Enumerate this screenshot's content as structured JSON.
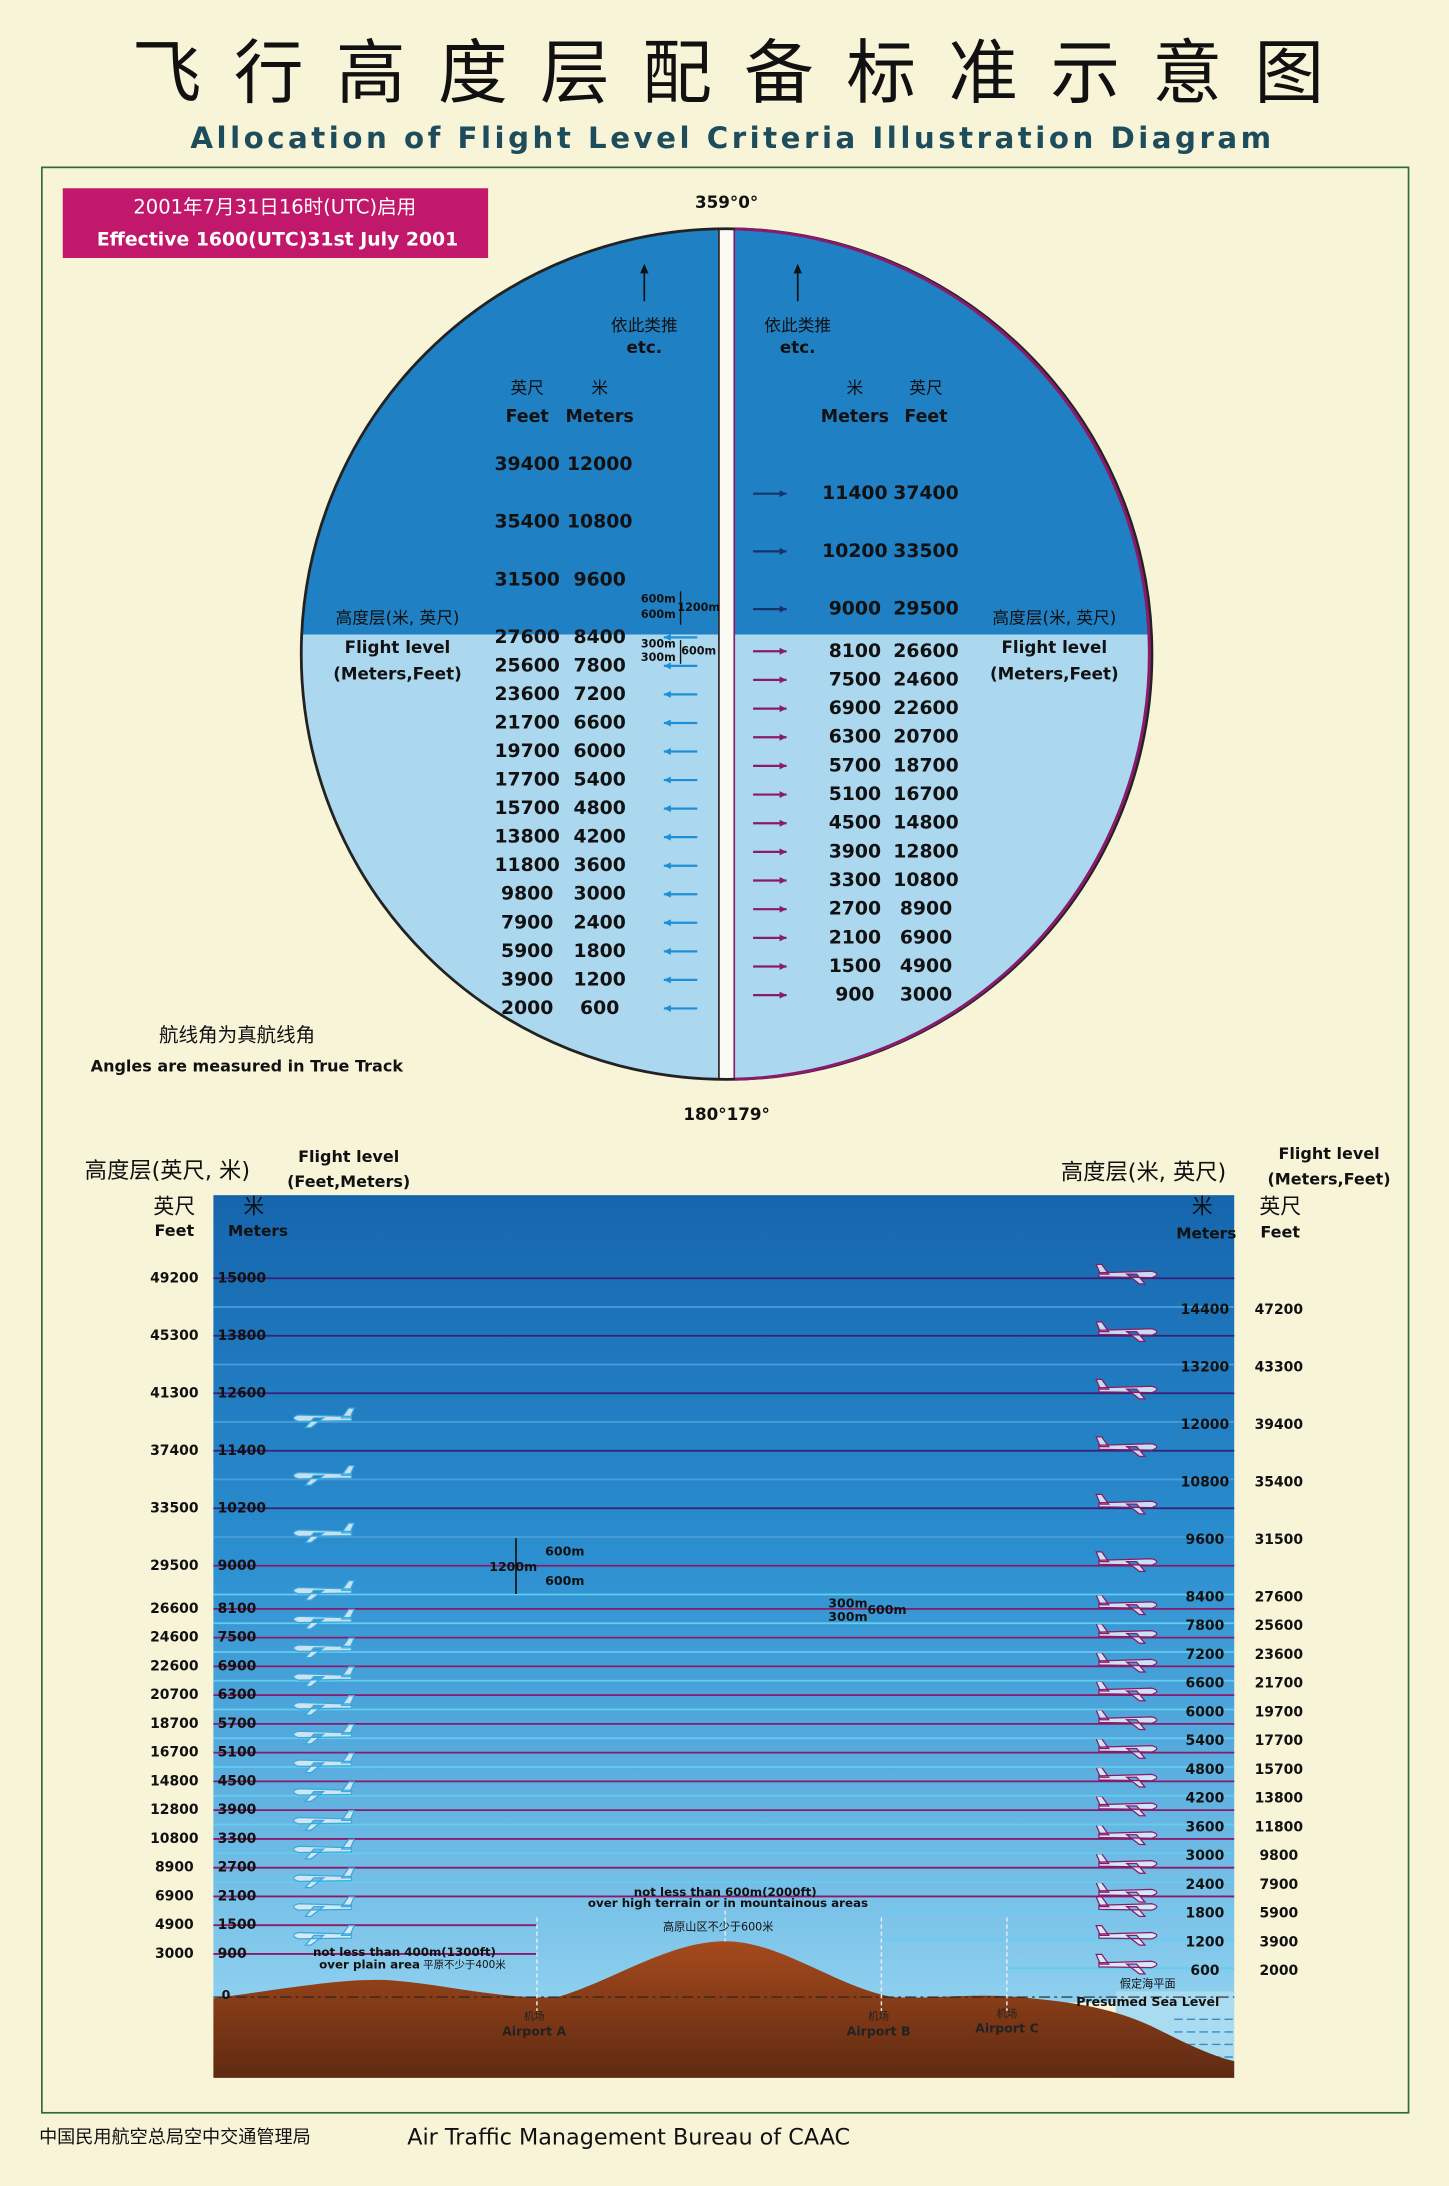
{
  "header": {
    "title_cn": "飞行高度层配备标准示意图",
    "title_en": "Allocation of Flight Level Criteria Illustration Diagram"
  },
  "effective": {
    "cn": "2001年7月31日16时(UTC)启用",
    "en": "Effective 1600(UTC)31st July 2001"
  },
  "circle": {
    "top_bearing": "359°0°",
    "bottom_bearing": "180°179°",
    "west": {
      "etc_cn": "依此类推",
      "etc_en": "etc.",
      "col1_cn": "英尺",
      "col2_cn": "米",
      "col1": "Feet",
      "col2": "Meters",
      "label_cn": "高度层(米, 英尺)",
      "label_en": "Flight level",
      "label_units": "(Meters,Feet)",
      "levels": [
        [
          39400,
          12000
        ],
        [
          35400,
          10800
        ],
        [
          31500,
          9600
        ],
        [
          27600,
          8400
        ],
        [
          25600,
          7800
        ],
        [
          23600,
          7200
        ],
        [
          21700,
          6600
        ],
        [
          19700,
          6000
        ],
        [
          17700,
          5400
        ],
        [
          15700,
          4800
        ],
        [
          13800,
          4200
        ],
        [
          11800,
          3600
        ],
        [
          9800,
          3000
        ],
        [
          7900,
          2400
        ],
        [
          5900,
          1800
        ],
        [
          3900,
          1200
        ],
        [
          2000,
          600
        ]
      ]
    },
    "east": {
      "etc_cn": "依此类推",
      "etc_en": "etc.",
      "col1_cn": "米",
      "col2_cn": "英尺",
      "col1": "Meters",
      "col2": "Feet",
      "label_cn": "高度层(米, 英尺)",
      "label_en": "Flight level",
      "label_units": "(Meters,Feet)",
      "levels": [
        [
          11400,
          37400
        ],
        [
          10200,
          33500
        ],
        [
          9000,
          29500
        ],
        [
          8100,
          26600
        ],
        [
          7500,
          24600
        ],
        [
          6900,
          22600
        ],
        [
          6300,
          20700
        ],
        [
          5700,
          18700
        ],
        [
          5100,
          16700
        ],
        [
          4500,
          14800
        ],
        [
          3900,
          12800
        ],
        [
          3300,
          10800
        ],
        [
          2700,
          8900
        ],
        [
          2100,
          6900
        ],
        [
          1500,
          4900
        ],
        [
          900,
          3000
        ]
      ]
    },
    "separation": [
      "600m",
      "600m",
      "1200m",
      "300m",
      "300m",
      "600m"
    ]
  },
  "note": {
    "cn": "航线角为真航线角",
    "en": "Angles are measured in True Track"
  },
  "profile": {
    "left": {
      "label_cn": "高度层(英尺, 米)",
      "label_en": "Flight level",
      "label_units": "(Feet,Meters)",
      "feet_cn": "英尺",
      "feet": "Feet",
      "meters_cn": "米",
      "meters": "Meters",
      "levels": [
        [
          49200,
          15000
        ],
        [
          45300,
          13800
        ],
        [
          41300,
          12600
        ],
        [
          37400,
          11400
        ],
        [
          33500,
          10200
        ],
        [
          29500,
          9000
        ],
        [
          26600,
          8100
        ],
        [
          24600,
          7500
        ],
        [
          22600,
          6900
        ],
        [
          20700,
          6300
        ],
        [
          18700,
          5700
        ],
        [
          16700,
          5100
        ],
        [
          14800,
          4500
        ],
        [
          12800,
          3900
        ],
        [
          10800,
          3300
        ],
        [
          8900,
          2700
        ],
        [
          6900,
          2100
        ],
        [
          4900,
          1500
        ],
        [
          3000,
          900
        ]
      ]
    },
    "right": {
      "label_cn": "高度层(米, 英尺)",
      "label_en": "Flight level",
      "label_units": "(Meters,Feet)",
      "meters_cn": "米",
      "meters": "Meters",
      "feet_cn": "英尺",
      "feet": "Feet",
      "levels": [
        [
          14400,
          47200
        ],
        [
          13200,
          43300
        ],
        [
          12000,
          39400
        ],
        [
          10800,
          35400
        ],
        [
          9600,
          31500
        ],
        [
          8400,
          27600
        ],
        [
          7800,
          25600
        ],
        [
          7200,
          23600
        ],
        [
          6600,
          21700
        ],
        [
          6000,
          19700
        ],
        [
          5400,
          17700
        ],
        [
          4800,
          15700
        ],
        [
          4200,
          13800
        ],
        [
          3600,
          11800
        ],
        [
          3000,
          9800
        ],
        [
          2400,
          7900
        ],
        [
          1800,
          5900
        ],
        [
          1200,
          3900
        ],
        [
          600,
          2000
        ]
      ]
    },
    "sep_high": [
      "1200m",
      "600m",
      "600m"
    ],
    "sep_low": [
      "300m",
      "300m",
      "600m"
    ],
    "mountain": {
      "line1": "not less than 600m(2000ft)",
      "line2": "over high terrain or in mountainous areas",
      "cn": "高原山区不少于600米"
    },
    "plain": {
      "line1": "not less than 400m(1300ft)",
      "line2": "over plain area",
      "cn": "平原不少于400米"
    },
    "zero": "0",
    "airports": [
      {
        "cn": "机场",
        "en": "Airport A"
      },
      {
        "cn": "机场",
        "en": "Airport B"
      },
      {
        "cn": "机场",
        "en": "Airport C"
      }
    ],
    "sea": {
      "cn": "假定海平面",
      "en": "Presumed Sea Level"
    }
  },
  "footer": {
    "cn": "中国民用航空总局空中交通管理局",
    "en": "Air Traffic Management Bureau of CAAC"
  }
}
